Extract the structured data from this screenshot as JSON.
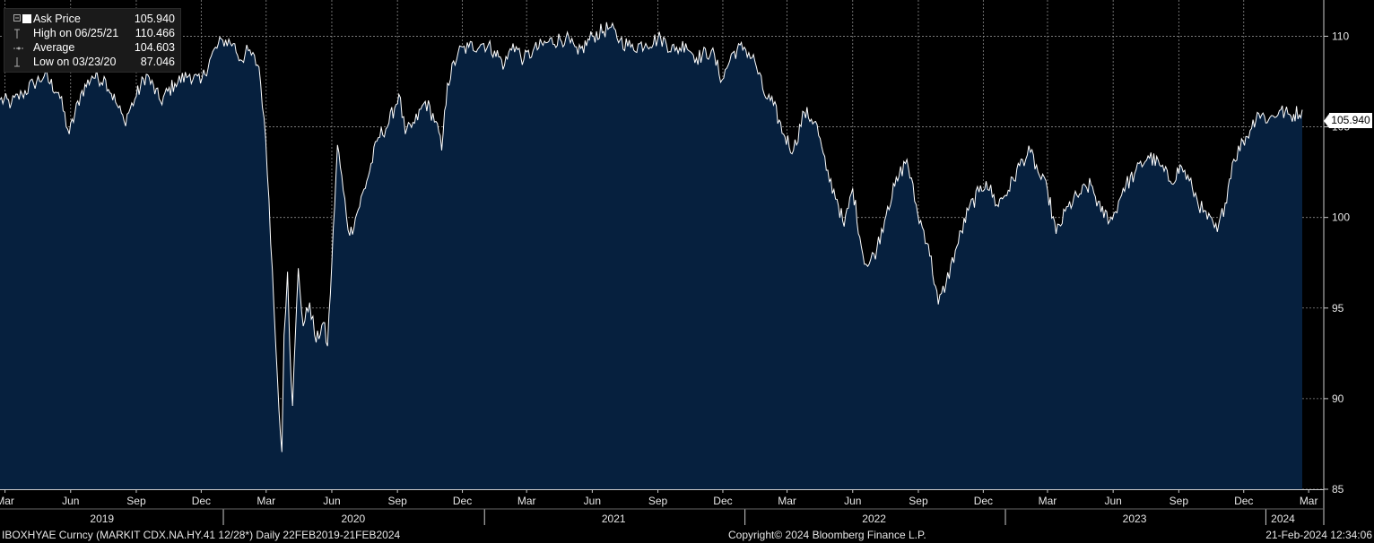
{
  "legend": {
    "rows": [
      {
        "label": "Ask Price",
        "value": "105.940"
      },
      {
        "label": "High on 06/25/21",
        "value": "110.466"
      },
      {
        "label": "Average",
        "value": "104.603"
      },
      {
        "label": "Low on 03/23/20",
        "value": "87.046"
      }
    ]
  },
  "footer": {
    "left": "IBOXHYAE Curncy (MARKIT CDX.NA.HY.41 12/28*)  Daily 22FEB2019-21FEB2024",
    "center": "Copyright© 2024 Bloomberg Finance L.P.",
    "right": "21-Feb-2024 12:34:06"
  },
  "last_price_label": "105.940",
  "colors": {
    "background": "#000000",
    "area_fill": "#06203e",
    "line": "#ffffff",
    "grid": "#9a9a9a"
  },
  "chart_data": {
    "type": "area",
    "series_label": "Ask Price",
    "ylim": [
      85,
      112
    ],
    "yticks": [
      85,
      90,
      95,
      100,
      105,
      110
    ],
    "x_start": "2019-02-22",
    "x_end": "2024-02-21",
    "month_ticks": [
      {
        "label": "Mar",
        "date": "2019-03-01"
      },
      {
        "label": "Jun",
        "date": "2019-06-01"
      },
      {
        "label": "Sep",
        "date": "2019-09-01"
      },
      {
        "label": "Dec",
        "date": "2019-12-01"
      },
      {
        "label": "Mar",
        "date": "2020-03-01"
      },
      {
        "label": "Jun",
        "date": "2020-06-01"
      },
      {
        "label": "Sep",
        "date": "2020-09-01"
      },
      {
        "label": "Dec",
        "date": "2020-12-01"
      },
      {
        "label": "Mar",
        "date": "2021-03-01"
      },
      {
        "label": "Jun",
        "date": "2021-06-01"
      },
      {
        "label": "Sep",
        "date": "2021-09-01"
      },
      {
        "label": "Dec",
        "date": "2021-12-01"
      },
      {
        "label": "Mar",
        "date": "2022-03-01"
      },
      {
        "label": "Jun",
        "date": "2022-06-01"
      },
      {
        "label": "Sep",
        "date": "2022-09-01"
      },
      {
        "label": "Dec",
        "date": "2022-12-01"
      },
      {
        "label": "Mar",
        "date": "2023-03-01"
      },
      {
        "label": "Jun",
        "date": "2023-06-01"
      },
      {
        "label": "Sep",
        "date": "2023-09-01"
      },
      {
        "label": "Dec",
        "date": "2023-12-01"
      },
      {
        "label": "Mar",
        "date": "2024-03-01"
      }
    ],
    "year_labels": [
      {
        "label": "2019",
        "date": "2019-07-15"
      },
      {
        "label": "2020",
        "date": "2020-07-01"
      },
      {
        "label": "2021",
        "date": "2021-07-01"
      },
      {
        "label": "2022",
        "date": "2022-07-01"
      },
      {
        "label": "2023",
        "date": "2023-07-01"
      },
      {
        "label": "2024",
        "date": "2024-01-25"
      }
    ],
    "year_separators": [
      "2020-01-01",
      "2021-01-01",
      "2022-01-01",
      "2023-01-01",
      "2024-01-01"
    ],
    "points": [
      [
        "2019-02-22",
        106.5
      ],
      [
        "2019-03-10",
        106.3
      ],
      [
        "2019-03-25",
        106.8
      ],
      [
        "2019-04-10",
        107.4
      ],
      [
        "2019-04-25",
        107.8
      ],
      [
        "2019-05-15",
        106.9
      ],
      [
        "2019-05-30",
        104.6
      ],
      [
        "2019-06-15",
        106.8
      ],
      [
        "2019-07-01",
        107.8
      ],
      [
        "2019-07-20",
        107.6
      ],
      [
        "2019-08-05",
        106.2
      ],
      [
        "2019-08-15",
        105.3
      ],
      [
        "2019-09-01",
        106.7
      ],
      [
        "2019-09-15",
        107.9
      ],
      [
        "2019-10-05",
        106.4
      ],
      [
        "2019-10-25",
        107.4
      ],
      [
        "2019-11-15",
        107.9
      ],
      [
        "2019-11-30",
        107.4
      ],
      [
        "2019-12-15",
        108.9
      ],
      [
        "2019-12-31",
        109.8
      ],
      [
        "2020-01-15",
        109.6
      ],
      [
        "2020-01-25",
        108.7
      ],
      [
        "2020-02-05",
        109.2
      ],
      [
        "2020-02-20",
        108.3
      ],
      [
        "2020-02-27",
        105.5
      ],
      [
        "2020-03-05",
        101.0
      ],
      [
        "2020-03-12",
        95.0
      ],
      [
        "2020-03-17",
        91.0
      ],
      [
        "2020-03-23",
        87.05
      ],
      [
        "2020-03-26",
        93.5
      ],
      [
        "2020-03-31",
        97.0
      ],
      [
        "2020-04-03",
        93.0
      ],
      [
        "2020-04-07",
        89.6
      ],
      [
        "2020-04-15",
        97.2
      ],
      [
        "2020-04-22",
        94.0
      ],
      [
        "2020-05-01",
        95.3
      ],
      [
        "2020-05-10",
        93.1
      ],
      [
        "2020-05-20",
        94.2
      ],
      [
        "2020-05-26",
        92.9
      ],
      [
        "2020-06-01",
        97.5
      ],
      [
        "2020-06-09",
        104.0
      ],
      [
        "2020-06-17",
        101.5
      ],
      [
        "2020-06-26",
        99.0
      ],
      [
        "2020-07-06",
        100.2
      ],
      [
        "2020-07-20",
        102.0
      ],
      [
        "2020-08-05",
        104.4
      ],
      [
        "2020-08-20",
        105.2
      ],
      [
        "2020-09-03",
        106.8
      ],
      [
        "2020-09-12",
        104.6
      ],
      [
        "2020-09-25",
        105.2
      ],
      [
        "2020-10-10",
        106.4
      ],
      [
        "2020-10-25",
        105.3
      ],
      [
        "2020-11-02",
        103.7
      ],
      [
        "2020-11-10",
        107.4
      ],
      [
        "2020-11-25",
        109.1
      ],
      [
        "2020-12-10",
        109.4
      ],
      [
        "2020-12-31",
        109.6
      ],
      [
        "2021-01-15",
        109.2
      ],
      [
        "2021-01-29",
        108.4
      ],
      [
        "2021-02-10",
        109.6
      ],
      [
        "2021-02-25",
        108.7
      ],
      [
        "2021-03-10",
        109.2
      ],
      [
        "2021-04-01",
        109.7
      ],
      [
        "2021-04-25",
        109.9
      ],
      [
        "2021-05-12",
        109.0
      ],
      [
        "2021-06-01",
        110.0
      ],
      [
        "2021-06-25",
        110.47
      ],
      [
        "2021-07-10",
        109.8
      ],
      [
        "2021-07-25",
        109.4
      ],
      [
        "2021-08-15",
        109.6
      ],
      [
        "2021-09-05",
        109.9
      ],
      [
        "2021-09-25",
        109.2
      ],
      [
        "2021-10-10",
        109.6
      ],
      [
        "2021-10-25",
        108.8
      ],
      [
        "2021-11-15",
        109.2
      ],
      [
        "2021-11-30",
        107.6
      ],
      [
        "2021-12-15",
        109.1
      ],
      [
        "2021-12-31",
        109.4
      ],
      [
        "2022-01-15",
        108.6
      ],
      [
        "2022-01-28",
        106.8
      ],
      [
        "2022-02-10",
        106.2
      ],
      [
        "2022-02-24",
        104.6
      ],
      [
        "2022-03-10",
        103.7
      ],
      [
        "2022-03-25",
        105.8
      ],
      [
        "2022-04-10",
        105.3
      ],
      [
        "2022-04-25",
        102.6
      ],
      [
        "2022-05-10",
        101.0
      ],
      [
        "2022-05-20",
        99.5
      ],
      [
        "2022-06-01",
        101.6
      ],
      [
        "2022-06-15",
        98.0
      ],
      [
        "2022-06-22",
        97.3
      ],
      [
        "2022-07-05",
        98.3
      ],
      [
        "2022-07-20",
        100.6
      ],
      [
        "2022-08-05",
        102.3
      ],
      [
        "2022-08-16",
        103.2
      ],
      [
        "2022-08-31",
        100.2
      ],
      [
        "2022-09-15",
        98.5
      ],
      [
        "2022-09-29",
        95.2
      ],
      [
        "2022-10-10",
        96.4
      ],
      [
        "2022-10-25",
        98.4
      ],
      [
        "2022-11-10",
        100.4
      ],
      [
        "2022-11-25",
        101.4
      ],
      [
        "2022-12-05",
        102.0
      ],
      [
        "2022-12-20",
        100.7
      ],
      [
        "2023-01-05",
        101.5
      ],
      [
        "2023-01-25",
        103.2
      ],
      [
        "2023-02-05",
        103.6
      ],
      [
        "2023-02-20",
        102.1
      ],
      [
        "2023-03-01",
        101.5
      ],
      [
        "2023-03-13",
        99.1
      ],
      [
        "2023-03-30",
        100.6
      ],
      [
        "2023-04-15",
        101.3
      ],
      [
        "2023-05-01",
        101.8
      ],
      [
        "2023-05-15",
        100.3
      ],
      [
        "2023-05-31",
        99.9
      ],
      [
        "2023-06-15",
        101.6
      ],
      [
        "2023-07-01",
        102.4
      ],
      [
        "2023-07-20",
        103.4
      ],
      [
        "2023-08-05",
        102.9
      ],
      [
        "2023-08-20",
        102.0
      ],
      [
        "2023-09-05",
        102.8
      ],
      [
        "2023-09-20",
        101.6
      ],
      [
        "2023-10-05",
        100.3
      ],
      [
        "2023-10-25",
        99.2
      ],
      [
        "2023-11-05",
        100.8
      ],
      [
        "2023-11-15",
        103.0
      ],
      [
        "2023-11-30",
        104.2
      ],
      [
        "2023-12-10",
        104.8
      ],
      [
        "2023-12-20",
        105.8
      ],
      [
        "2024-01-05",
        105.4
      ],
      [
        "2024-01-20",
        105.9
      ],
      [
        "2024-02-05",
        105.6
      ],
      [
        "2024-02-21",
        105.94
      ]
    ]
  }
}
